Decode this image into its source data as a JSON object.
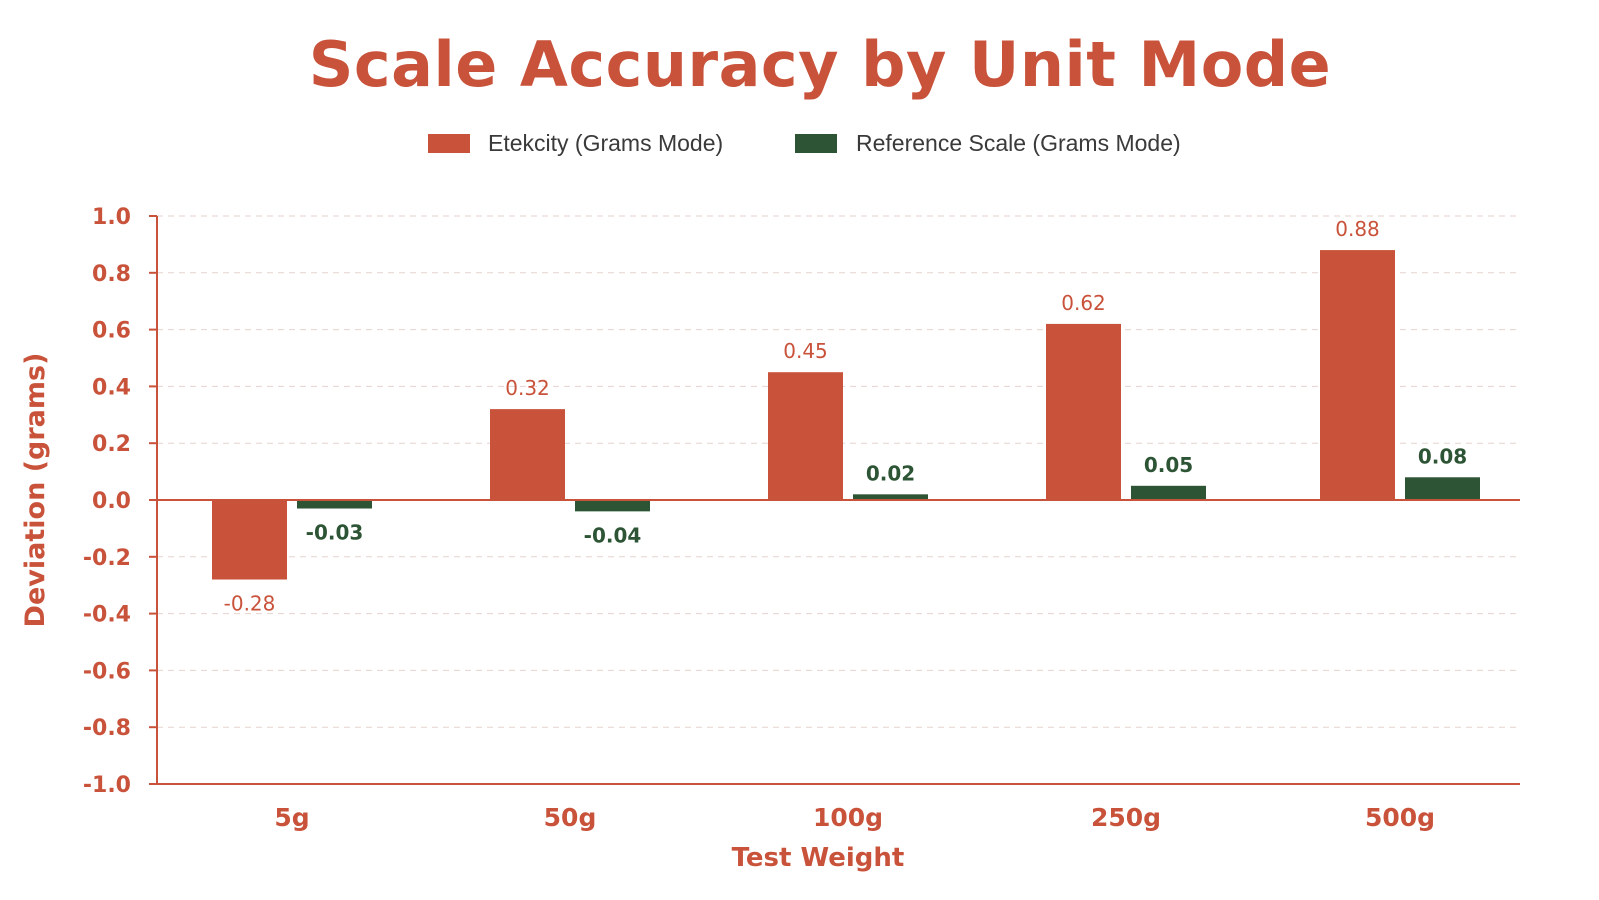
{
  "chart_data": {
    "type": "bar",
    "title": "Scale Accuracy by Unit Mode",
    "xlabel": "Test Weight",
    "ylabel": "Deviation (grams)",
    "categories": [
      "5g",
      "50g",
      "100g",
      "250g",
      "500g"
    ],
    "series": [
      {
        "name": "Etekcity (Grams Mode)",
        "color": "#c9523a",
        "values": [
          -0.28,
          0.32,
          0.45,
          0.62,
          0.88
        ],
        "labels": [
          "-0.28",
          "0.32",
          "0.45",
          "0.62",
          "0.88"
        ]
      },
      {
        "name": "Reference Scale (Grams Mode)",
        "color": "#2d5535",
        "values": [
          -0.03,
          -0.04,
          0.02,
          0.05,
          0.08
        ],
        "labels": [
          "-0.03",
          "-0.04",
          "0.02",
          "0.05",
          "0.08"
        ]
      }
    ],
    "ylim": [
      -1.0,
      1.0
    ],
    "yticks": [
      1.0,
      0.8,
      0.6,
      0.4,
      0.2,
      0.0,
      -0.2,
      -0.4,
      -0.6,
      -0.8,
      -1.0
    ],
    "ytick_labels": [
      "1.0",
      "0.8",
      "0.6",
      "0.4",
      "0.2",
      "0.0",
      "-0.2",
      "-0.4",
      "-0.6",
      "-0.8",
      "-1.0"
    ],
    "grid": true,
    "legend_position": "top-center",
    "accent_color": "#c9523a",
    "grid_color": "#e6d3cd"
  }
}
